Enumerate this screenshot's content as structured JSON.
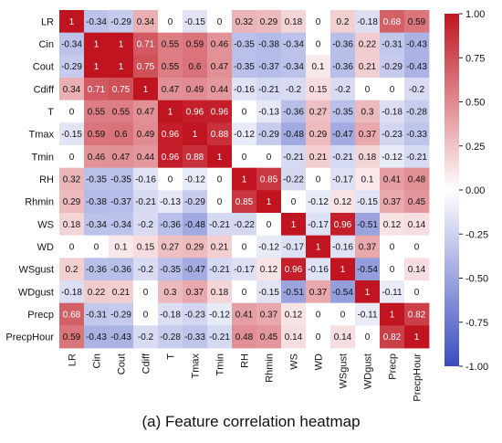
{
  "chart_data": {
    "type": "heatmap",
    "variables": [
      "LR",
      "Cin",
      "Cout",
      "Cdiff",
      "T",
      "Tmax",
      "Tmin",
      "RH",
      "Rhmin",
      "WS",
      "WD",
      "WSgust",
      "WDgust",
      "Precp",
      "PrecpHour"
    ],
    "matrix": [
      [
        "1",
        "-0.34",
        "-0.29",
        "0.34",
        "0",
        "-0.15",
        "0",
        "0.32",
        "0.29",
        "0.18",
        "0",
        "0.2",
        "-0.18",
        "0.68",
        "0.59"
      ],
      [
        "-0.34",
        "1",
        "1",
        "0.71",
        "0.55",
        "0.59",
        "0.46",
        "-0.35",
        "-0.38",
        "-0.34",
        "0",
        "-0.36",
        "0.22",
        "-0.31",
        "-0.43"
      ],
      [
        "-0.29",
        "1",
        "1",
        "0.75",
        "0.55",
        "0.6",
        "0.47",
        "-0.35",
        "-0.37",
        "-0.34",
        "0.1",
        "-0.36",
        "0.21",
        "-0.29",
        "-0.43"
      ],
      [
        "0.34",
        "0.71",
        "0.75",
        "1",
        "0.47",
        "0.49",
        "0.44",
        "-0.16",
        "-0.21",
        "-0.2",
        "0.15",
        "-0.2",
        "0",
        "0",
        "-0.2"
      ],
      [
        "0",
        "0.55",
        "0.55",
        "0.47",
        "1",
        "0.96",
        "0.96",
        "0",
        "-0.13",
        "-0.36",
        "0.27",
        "-0.35",
        "0.3",
        "-0.18",
        "-0.28"
      ],
      [
        "-0.15",
        "0.59",
        "0.6",
        "0.49",
        "0.96",
        "1",
        "0.88",
        "-0.12",
        "-0.29",
        "-0.48",
        "0.29",
        "-0.47",
        "0.37",
        "-0.23",
        "-0.33"
      ],
      [
        "0",
        "0.46",
        "0.47",
        "0.44",
        "0.96",
        "0.88",
        "1",
        "0",
        "0",
        "-0.21",
        "0.21",
        "-0.21",
        "0.18",
        "-0.12",
        "-0.21"
      ],
      [
        "0.32",
        "-0.35",
        "-0.35",
        "-0.16",
        "0",
        "-0.12",
        "0",
        "1",
        "0.85",
        "-0.22",
        "0",
        "-0.17",
        "0.1",
        "0.41",
        "0.48"
      ],
      [
        "0.29",
        "-0.38",
        "-0.37",
        "-0.21",
        "-0.13",
        "-0.29",
        "0",
        "0.85",
        "1",
        "0",
        "-0.12",
        "0.12",
        "-0.15",
        "0.37",
        "0.45"
      ],
      [
        "0.18",
        "-0.34",
        "-0.34",
        "-0.2",
        "-0.36",
        "-0.48",
        "-0.21",
        "-0.22",
        "0",
        "1",
        "-0.17",
        "0.96",
        "-0.51",
        "0.12",
        "0.14"
      ],
      [
        "0",
        "0",
        "0.1",
        "0.15",
        "0.27",
        "0.29",
        "0.21",
        "0",
        "-0.12",
        "-0.17",
        "1",
        "-0.16",
        "0.37",
        "0",
        "0"
      ],
      [
        "0.2",
        "-0.36",
        "-0.36",
        "-0.2",
        "-0.35",
        "-0.47",
        "-0.21",
        "-0.17",
        "0.12",
        "0.96",
        "-0.16",
        "1",
        "-0.54",
        "0",
        "0.14"
      ],
      [
        "-0.18",
        "0.22",
        "0.21",
        "0",
        "0.3",
        "0.37",
        "0.18",
        "0",
        "-0.15",
        "-0.51",
        "0.37",
        "-0.54",
        "1",
        "-0.11",
        "0"
      ],
      [
        "0.68",
        "-0.31",
        "-0.29",
        "0",
        "-0.18",
        "-0.23",
        "-0.12",
        "0.41",
        "0.37",
        "0.12",
        "0",
        "0",
        "-0.11",
        "1",
        "0.82"
      ],
      [
        "0.59",
        "-0.43",
        "-0.43",
        "-0.2",
        "-0.28",
        "-0.33",
        "-0.21",
        "0.48",
        "0.45",
        "0.14",
        "0",
        "0.14",
        "0",
        "0.82",
        "1"
      ]
    ],
    "colorbar": {
      "range": [
        -1,
        1
      ],
      "ticks": [
        "1.00",
        "0.75",
        "0.50",
        "0.25",
        "0.00",
        "-0.25",
        "-0.50",
        "-0.75",
        "-1.00"
      ],
      "colormap": [
        "#3b4cc0",
        "#ffffff",
        "#c01520"
      ]
    },
    "caption": "(a) Feature correlation heatmap"
  }
}
